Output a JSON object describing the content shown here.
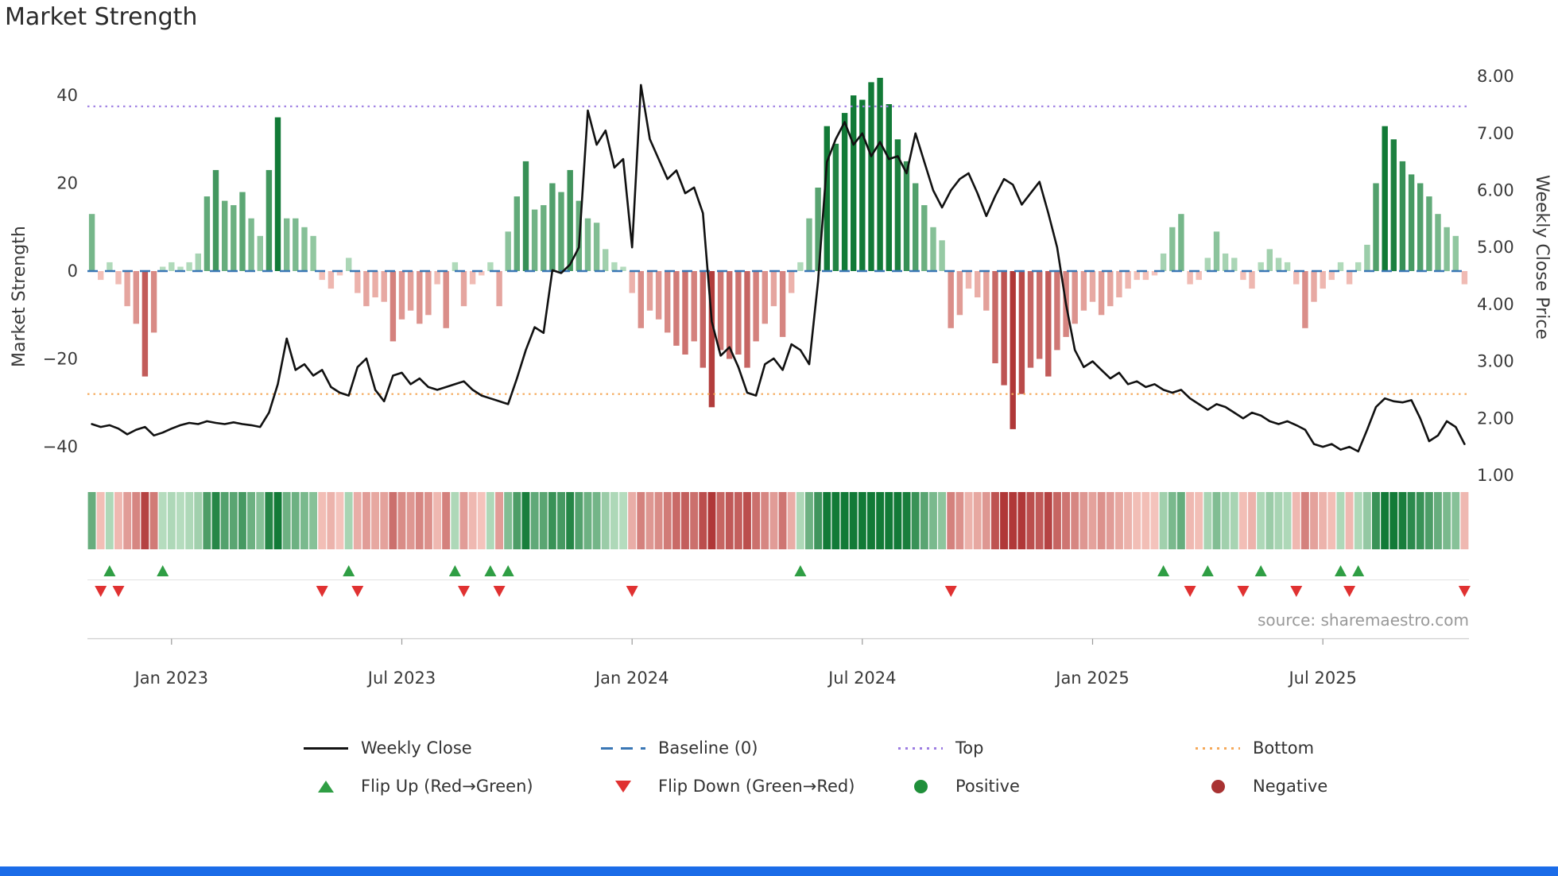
{
  "title": "Market Strength",
  "source": "source: sharemaestro.com",
  "axes": {
    "y_left_label": "Market Strength",
    "y_right_label": "Weekly Close Price",
    "y_left_ticks": [
      {
        "label": "40",
        "value": 40
      },
      {
        "label": "20",
        "value": 20
      },
      {
        "label": "0",
        "value": 0
      },
      {
        "label": "−20",
        "value": -20
      },
      {
        "label": "−40",
        "value": -40
      }
    ],
    "y_right_ticks": [
      {
        "label": "8.00",
        "value": 8
      },
      {
        "label": "7.00",
        "value": 7
      },
      {
        "label": "6.00",
        "value": 6
      },
      {
        "label": "5.00",
        "value": 5
      },
      {
        "label": "4.00",
        "value": 4
      },
      {
        "label": "3.00",
        "value": 3
      },
      {
        "label": "2.00",
        "value": 2
      },
      {
        "label": "1.00",
        "value": 1
      }
    ]
  },
  "legend": {
    "weekly_close": "Weekly Close",
    "baseline": "Baseline (0)",
    "top": "Top",
    "bottom": "Bottom",
    "flip_up": "Flip Up (Red→Green)",
    "flip_down": "Flip Down (Green→Red)",
    "positive": "Positive",
    "negative": "Negative"
  },
  "colors": {
    "line": "#111111",
    "baseline": "#3a77b5",
    "top": "#9d7de2",
    "bottom": "#f5a95a",
    "positive_dark": "#127a37",
    "positive_light": "#bbe0c3",
    "negative_dark": "#b03838",
    "negative_light": "#f7c9c1",
    "flip_up": "#2f9e44",
    "flip_down": "#e03131",
    "positive_dot": "#1f8f3a",
    "negative_dot": "#a83232",
    "bottom_bar": "#1b6ce8"
  },
  "chart_data": {
    "type": "combo",
    "title": "Market Strength",
    "n_points": 156,
    "x_unit": "week",
    "y_left_range": [
      -45,
      50
    ],
    "y_right_range": [
      1,
      8
    ],
    "baseline": 0,
    "top_threshold": 37.5,
    "bottom_threshold": -28,
    "x_ticks": [
      {
        "label": "Jan 2023",
        "index": 9
      },
      {
        "label": "Jul 2023",
        "index": 35
      },
      {
        "label": "Jan 2024",
        "index": 61
      },
      {
        "label": "Jul 2024",
        "index": 87
      },
      {
        "label": "Jan 2025",
        "index": 113
      },
      {
        "label": "Jul 2025",
        "index": 139
      }
    ],
    "series": [
      {
        "name": "Market Strength",
        "type": "bar",
        "axis": "left",
        "values": [
          13,
          -2,
          2,
          -3,
          -8,
          -12,
          -24,
          -14,
          1,
          2,
          1,
          2,
          4,
          17,
          23,
          16,
          15,
          18,
          12,
          8,
          23,
          35,
          12,
          12,
          10,
          8,
          -2,
          -4,
          -1,
          3,
          -5,
          -8,
          -6,
          -7,
          -16,
          -11,
          -9,
          -12,
          -10,
          -3,
          -13,
          2,
          -8,
          -3,
          -1,
          2,
          -8,
          9,
          17,
          25,
          14,
          15,
          20,
          18,
          23,
          16,
          12,
          11,
          5,
          2,
          1,
          -5,
          -13,
          -9,
          -11,
          -14,
          -17,
          -19,
          -16,
          -22,
          -31,
          -18,
          -20,
          -19,
          -22,
          -16,
          -12,
          -8,
          -15,
          -5,
          2,
          12,
          19,
          33,
          29,
          36,
          40,
          39,
          43,
          44,
          38,
          30,
          25,
          20,
          15,
          10,
          7,
          -13,
          -10,
          -4,
          -6,
          -9,
          -21,
          -26,
          -36,
          -28,
          -22,
          -20,
          -24,
          -18,
          -15,
          -12,
          -9,
          -7,
          -10,
          -8,
          -6,
          -4,
          -2,
          -2,
          -1,
          4,
          10,
          13,
          -3,
          -2,
          3,
          9,
          4,
          3,
          -2,
          -4,
          2,
          5,
          3,
          2,
          -3,
          -13,
          -7,
          -4,
          -2,
          2,
          -3,
          2,
          6,
          20,
          33,
          30,
          25,
          22,
          20,
          17,
          13,
          10,
          8,
          -3
        ]
      },
      {
        "name": "Weekly Close",
        "type": "line",
        "axis": "right",
        "values": [
          1.9,
          1.85,
          1.88,
          1.82,
          1.72,
          1.8,
          1.85,
          1.7,
          1.75,
          1.82,
          1.88,
          1.92,
          1.9,
          1.95,
          1.92,
          1.9,
          1.93,
          1.9,
          1.88,
          1.85,
          2.1,
          2.6,
          3.4,
          2.85,
          2.95,
          2.75,
          2.85,
          2.55,
          2.45,
          2.4,
          2.9,
          3.05,
          2.5,
          2.3,
          2.75,
          2.8,
          2.6,
          2.7,
          2.55,
          2.5,
          2.55,
          2.6,
          2.65,
          2.5,
          2.4,
          2.35,
          2.3,
          2.25,
          2.7,
          3.2,
          3.6,
          3.5,
          4.6,
          4.55,
          4.7,
          5.0,
          7.4,
          6.8,
          7.05,
          6.4,
          6.55,
          5.0,
          7.85,
          6.9,
          6.55,
          6.2,
          6.35,
          5.95,
          6.05,
          5.6,
          3.7,
          3.1,
          3.25,
          2.9,
          2.45,
          2.4,
          2.95,
          3.05,
          2.85,
          3.3,
          3.2,
          2.95,
          4.4,
          6.5,
          6.9,
          7.2,
          6.8,
          7.0,
          6.6,
          6.85,
          6.55,
          6.6,
          6.3,
          7.0,
          6.5,
          6.0,
          5.7,
          6.0,
          6.2,
          6.3,
          5.95,
          5.55,
          5.9,
          6.2,
          6.1,
          5.75,
          5.95,
          6.15,
          5.6,
          5.0,
          4.0,
          3.2,
          2.9,
          3.0,
          2.85,
          2.7,
          2.8,
          2.6,
          2.65,
          2.55,
          2.6,
          2.5,
          2.45,
          2.5,
          2.35,
          2.25,
          2.15,
          2.25,
          2.2,
          2.1,
          2.0,
          2.1,
          2.05,
          1.95,
          1.9,
          1.95,
          1.88,
          1.8,
          1.55,
          1.5,
          1.55,
          1.45,
          1.5,
          1.42,
          1.8,
          2.2,
          2.35,
          2.3,
          2.28,
          2.32,
          2.0,
          1.6,
          1.7,
          1.95,
          1.85,
          1.55
        ]
      }
    ],
    "flip_up_indices": [
      2,
      8,
      29,
      41,
      45,
      47,
      80,
      121,
      126,
      132,
      141,
      143
    ],
    "flip_down_indices": [
      1,
      3,
      26,
      30,
      42,
      46,
      61,
      97,
      124,
      130,
      136,
      142,
      155
    ],
    "heatmap": "strip below main plot colored by Market Strength bar values (red-green gradient)"
  }
}
